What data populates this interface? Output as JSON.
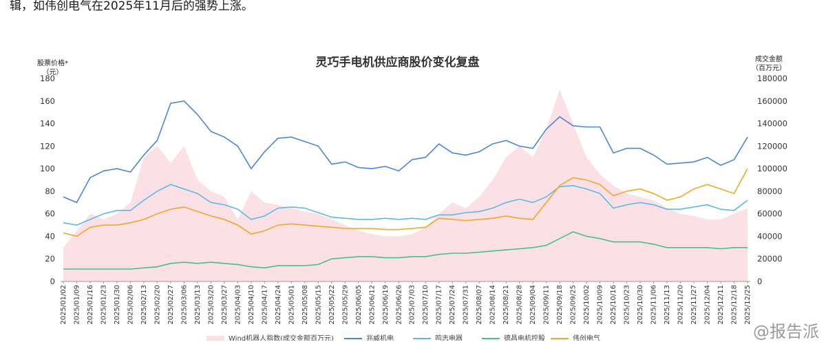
{
  "page": {
    "intro_text": "辑，如伟创电气在2025年11月后的强势上涨。",
    "watermark": "@报告派"
  },
  "chart_data": {
    "type": "line",
    "title": "灵巧手电机供应商股价变化复盘",
    "ylabel_left": "股票价格*",
    "ylabel_left_unit": "（元）",
    "ylabel_right": "成交金额",
    "ylabel_right_unit": "（百万元）",
    "ylim_left": [
      0,
      180
    ],
    "yticks_left": [
      "0",
      "20",
      "40",
      "60",
      "80",
      "100",
      "120",
      "140",
      "160",
      "180"
    ],
    "ylim_right": [
      0,
      180000
    ],
    "yticks_right": [
      "0",
      "20000",
      "40000",
      "60000",
      "80000",
      "100000",
      "120000",
      "140000",
      "160000",
      "180000"
    ],
    "x_dates": [
      "2025/01/02",
      "2025/01/09",
      "2025/01/16",
      "2025/01/23",
      "2025/01/30",
      "2025/02/06",
      "2025/02/13",
      "2025/02/20",
      "2025/02/27",
      "2025/03/06",
      "2025/03/13",
      "2025/03/20",
      "2025/03/27",
      "2025/04/03",
      "2025/04/10",
      "2025/04/17",
      "2025/04/24",
      "2025/05/01",
      "2025/05/08",
      "2025/05/15",
      "2025/05/22",
      "2025/05/29",
      "2025/06/05",
      "2025/06/12",
      "2025/06/19",
      "2025/06/26",
      "2025/07/03",
      "2025/07/10",
      "2025/07/17",
      "2025/07/24",
      "2025/07/31",
      "2025/08/07",
      "2025/08/14",
      "2025/08/21",
      "2025/08/28",
      "2025/09/04",
      "2025/09/11",
      "2025/09/18",
      "2025/09/25",
      "2025/10/02",
      "2025/10/09",
      "2025/10/16",
      "2025/10/23",
      "2025/10/30",
      "2025/11/06",
      "2025/11/13",
      "2025/11/20",
      "2025/11/27",
      "2025/12/04",
      "2025/12/11",
      "2025/12/18",
      "2025/12/25"
    ],
    "area_series": {
      "name": "Wind机器人指数(成交金额百万元)",
      "color": "#fbe0e6",
      "axis": "right",
      "values": [
        30000,
        45000,
        60000,
        55000,
        60000,
        70000,
        110000,
        120000,
        105000,
        120000,
        90000,
        80000,
        75000,
        55000,
        80000,
        70000,
        68000,
        65000,
        62000,
        60000,
        55000,
        50000,
        45000,
        42000,
        40000,
        40000,
        42000,
        48000,
        60000,
        70000,
        65000,
        75000,
        90000,
        110000,
        120000,
        110000,
        135000,
        170000,
        140000,
        110000,
        95000,
        85000,
        78000,
        75000,
        72000,
        65000,
        60000,
        58000,
        55000,
        55000,
        60000,
        65000
      ]
    },
    "series": [
      {
        "name": "兆威机电",
        "color": "#4a86d4",
        "values": [
          75,
          70,
          92,
          98,
          100,
          97,
          112,
          125,
          158,
          160,
          148,
          133,
          128,
          120,
          100,
          115,
          127,
          128,
          124,
          120,
          104,
          106,
          101,
          100,
          102,
          98,
          108,
          110,
          122,
          114,
          112,
          115,
          122,
          125,
          120,
          118,
          135,
          146,
          138,
          137,
          137,
          114,
          118,
          118,
          112,
          104,
          105,
          106,
          110,
          103,
          108,
          128
        ]
      },
      {
        "name": "鸣志电器",
        "color": "#5bb8e6",
        "values": [
          52,
          50,
          55,
          60,
          63,
          63,
          72,
          80,
          86,
          82,
          78,
          70,
          68,
          64,
          55,
          58,
          65,
          66,
          65,
          61,
          57,
          56,
          55,
          55,
          56,
          55,
          56,
          55,
          59,
          59,
          61,
          62,
          65,
          70,
          73,
          70,
          75,
          84,
          85,
          82,
          78,
          65,
          68,
          70,
          68,
          64,
          64,
          66,
          68,
          64,
          63,
          72
        ]
      },
      {
        "name": "德昌电机控股",
        "color": "#45c089",
        "values": [
          11,
          11,
          11,
          11,
          11,
          11,
          12,
          13,
          16,
          17,
          16,
          17,
          16,
          15,
          13,
          12,
          14,
          14,
          14,
          15,
          20,
          21,
          22,
          22,
          21,
          21,
          22,
          22,
          24,
          25,
          25,
          26,
          27,
          28,
          29,
          30,
          32,
          38,
          44,
          40,
          38,
          35,
          35,
          35,
          33,
          30,
          30,
          30,
          30,
          29,
          30,
          30
        ]
      },
      {
        "name": "伟创电气",
        "color": "#f5a623",
        "values": [
          43,
          40,
          48,
          50,
          50,
          52,
          55,
          60,
          64,
          66,
          62,
          58,
          55,
          50,
          42,
          45,
          50,
          51,
          50,
          49,
          48,
          47,
          47,
          47,
          46,
          46,
          47,
          48,
          56,
          55,
          54,
          55,
          56,
          58,
          56,
          55,
          70,
          85,
          92,
          90,
          86,
          76,
          80,
          82,
          78,
          72,
          75,
          82,
          86,
          82,
          78,
          100
        ]
      }
    ],
    "legend_position": "bottom",
    "grid": false
  }
}
